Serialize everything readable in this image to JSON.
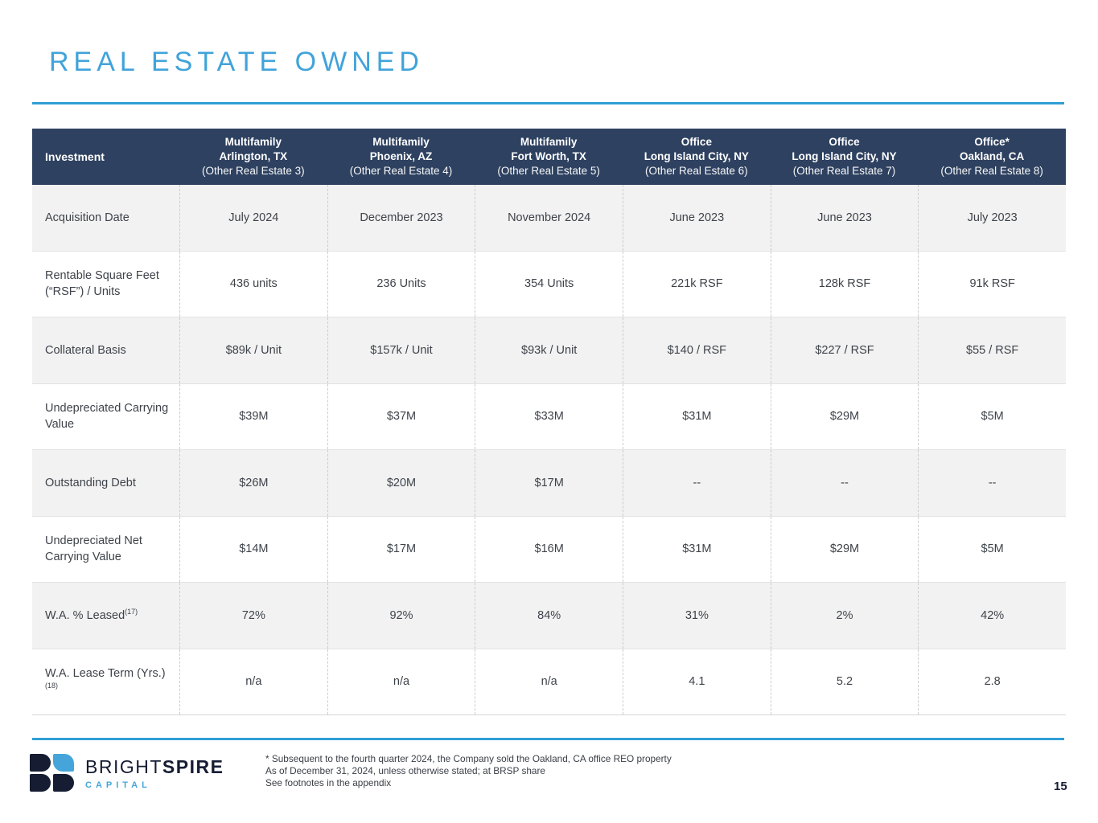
{
  "slide": {
    "title": "REAL ESTATE OWNED",
    "page_number": "15"
  },
  "colors": {
    "accent_blue": "#2f9fd4",
    "title_blue": "#41a3da",
    "header_navy": "#2e4160",
    "row_alt_gray": "#f2f2f2",
    "body_text": "#3e434a",
    "logo_navy": "#161d33",
    "logo_blue": "#45a5da"
  },
  "table": {
    "corner_label": "Investment",
    "columns": [
      {
        "type": "Multifamily",
        "location": "Arlington, TX",
        "sub": "(Other Real Estate 3)"
      },
      {
        "type": "Multifamily",
        "location": "Phoenix, AZ",
        "sub": "(Other Real Estate 4)"
      },
      {
        "type": "Multifamily",
        "location": "Fort Worth, TX",
        "sub": "(Other Real Estate 5)"
      },
      {
        "type": "Office",
        "location": "Long Island City, NY",
        "sub": "(Other Real Estate 6)"
      },
      {
        "type": "Office",
        "location": "Long Island City, NY",
        "sub": "(Other Real Estate 7)"
      },
      {
        "type": "Office*",
        "location": "Oakland, CA",
        "sub": "(Other Real Estate 8)"
      }
    ],
    "rows": [
      {
        "label": "Acquisition Date",
        "sup": "",
        "values": [
          "July 2024",
          "December 2023",
          "November 2024",
          "June 2023",
          "June 2023",
          "July 2023"
        ]
      },
      {
        "label": "Rentable Square Feet (“RSF”) / Units",
        "sup": "",
        "values": [
          "436 units",
          "236 Units",
          "354 Units",
          "221k RSF",
          "128k RSF",
          "91k RSF"
        ]
      },
      {
        "label": "Collateral Basis",
        "sup": "",
        "values": [
          "$89k / Unit",
          "$157k / Unit",
          "$93k / Unit",
          "$140 / RSF",
          "$227 / RSF",
          "$55 / RSF"
        ]
      },
      {
        "label": "Undepreciated Carrying Value",
        "sup": "",
        "values": [
          "$39M",
          "$37M",
          "$33M",
          "$31M",
          "$29M",
          "$5M"
        ]
      },
      {
        "label": "Outstanding Debt",
        "sup": "",
        "values": [
          "$26M",
          "$20M",
          "$17M",
          "--",
          "--",
          "--"
        ]
      },
      {
        "label": "Undepreciated Net Carrying Value",
        "sup": "",
        "values": [
          "$14M",
          "$17M",
          "$16M",
          "$31M",
          "$29M",
          "$5M"
        ]
      },
      {
        "label": "W.A. % Leased",
        "sup": "(17)",
        "values": [
          "72%",
          "92%",
          "84%",
          "31%",
          "2%",
          "42%"
        ]
      },
      {
        "label": "W.A. Lease Term (Yrs.)",
        "sup": "(18)",
        "values": [
          "n/a",
          "n/a",
          "n/a",
          "4.1",
          "5.2",
          "2.8"
        ]
      }
    ]
  },
  "footer": {
    "footnote_line1": "* Subsequent to the fourth quarter 2024, the Company sold the Oakland, CA office REO property",
    "footnote_line2": "As of December 31, 2024, unless otherwise stated; at BRSP share",
    "footnote_line3": "See footnotes in the appendix"
  },
  "logo": {
    "name_regular": "BRIGHT",
    "name_bold": "SPIRE",
    "subtitle": "CAPITAL"
  }
}
